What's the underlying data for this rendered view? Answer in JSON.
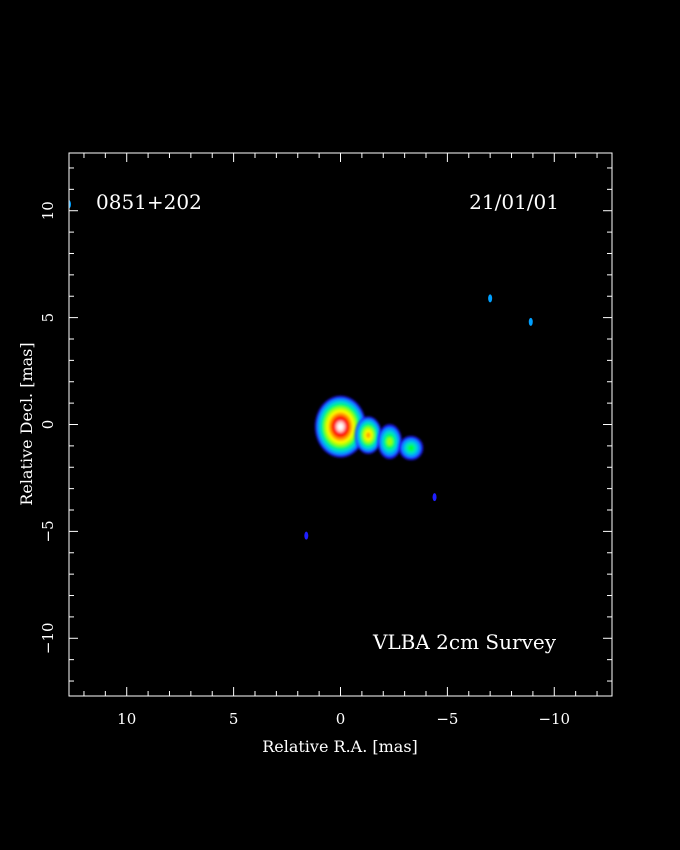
{
  "chart_data": {
    "type": "heatmap",
    "title": "",
    "source_label": "0851+202",
    "epoch_label": "21/01/01",
    "survey_label": "VLBA 2cm Survey",
    "xlabel": "Relative R.A. [mas]",
    "ylabel": "Relative Decl. [mas]",
    "xlim": [
      12.7,
      -12.7
    ],
    "ylim": [
      -12.7,
      12.7
    ],
    "xticks": [
      10,
      5,
      0,
      -5,
      -10
    ],
    "xtick_labels": [
      "10",
      "5",
      "0",
      "−5",
      "−10"
    ],
    "yticks": [
      10,
      5,
      0,
      -5,
      -10
    ],
    "ytick_labels": [
      "10",
      "5",
      "0",
      "−5",
      "−10"
    ],
    "grid": false,
    "colormap": [
      "#1f1fff",
      "#00a0ff",
      "#00e0c0",
      "#00ff40",
      "#a0ff00",
      "#ffff00",
      "#ffa000",
      "#ff3000",
      "#ff0000",
      "#ffc0c0",
      "#ffffff"
    ],
    "components": [
      {
        "name": "core",
        "x": 0.0,
        "y": -0.1,
        "major": 2.3,
        "minor": 1.9,
        "level": 10
      },
      {
        "name": "jet-inner",
        "x": -1.3,
        "y": -0.5,
        "major": 1.4,
        "minor": 1.0,
        "level": 6
      },
      {
        "name": "jet-middle",
        "x": -2.3,
        "y": -0.8,
        "major": 1.3,
        "minor": 0.9,
        "level": 4
      },
      {
        "name": "jet-outer",
        "x": -3.3,
        "y": -1.1,
        "major": 0.9,
        "minor": 0.9,
        "level": 3
      }
    ],
    "noise_spots": [
      {
        "x": -7.0,
        "y": 5.9,
        "level": 1
      },
      {
        "x": -8.9,
        "y": 4.8,
        "level": 1
      },
      {
        "x": 12.7,
        "y": 10.3,
        "level": 1
      },
      {
        "x": 1.6,
        "y": -5.2,
        "level": 0
      },
      {
        "x": -4.4,
        "y": -3.4,
        "level": 0
      }
    ]
  }
}
